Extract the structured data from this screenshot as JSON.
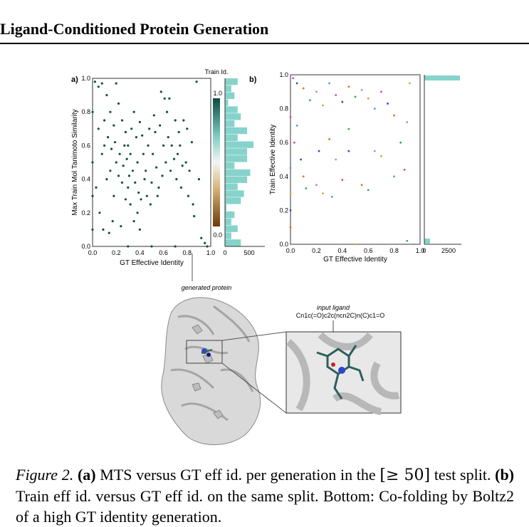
{
  "header": {
    "title": "Ligand-Conditioned Protein Generation"
  },
  "colors": {
    "teal_dark": "#0f4f45",
    "teal_light": "#7fcfc4",
    "hist": "#86d3cb",
    "brown": "#7a4a15",
    "magenta": "#cc44cc",
    "blue": "#3344cc"
  },
  "panel_a": {
    "label": "a)",
    "ylabel": "Max Train Mol Tanimoto Similarity",
    "xlabel": "GT Effective Identity",
    "xticks": [
      "0.0",
      "0.2",
      "0.4",
      "0.6",
      "0.8",
      "1.0"
    ],
    "yticks": [
      "0.0",
      "0.2",
      "0.4",
      "0.6",
      "0.8",
      "1.0"
    ],
    "colorbar_title": "Train Id.",
    "colorbar_ticks": [
      "1.0",
      "0.0"
    ],
    "hist_xticks": [
      "0",
      "500"
    ]
  },
  "panel_b": {
    "label": "b)",
    "ylabel": "Train Effective Identity",
    "xlabel": "GT Effective Identity",
    "xticks": [
      "0.0",
      "0.2",
      "0.4",
      "0.6",
      "0.8",
      "1.0"
    ],
    "yticks": [
      "0.0",
      "0.2",
      "0.4",
      "0.6",
      "0.8",
      "1.0"
    ],
    "hist_xticks": [
      "0",
      "2500"
    ]
  },
  "protein": {
    "generated_label": "generated protein",
    "ligand_label": "input ligand",
    "smiles": "Cn1c(=O)c2c(ncn2C)n(C)c1=O"
  },
  "chart_data": [
    {
      "type": "scatter",
      "title": "",
      "xlabel": "GT Effective Identity",
      "ylabel": "Max Train Mol Tanimoto Similarity",
      "xlim": [
        0,
        1
      ],
      "ylim": [
        0,
        1
      ],
      "colorbar": "Train Id.",
      "points": [
        [
          0.02,
          0.98
        ],
        [
          0.05,
          0.95
        ],
        [
          0.08,
          0.97
        ],
        [
          0.12,
          0.9
        ],
        [
          0.15,
          0.8
        ],
        [
          0.18,
          0.72
        ],
        [
          0.2,
          0.97
        ],
        [
          0.22,
          0.85
        ],
        [
          0.25,
          0.75
        ],
        [
          0.28,
          0.68
        ],
        [
          0.3,
          0.6
        ],
        [
          0.32,
          0.55
        ],
        [
          0.35,
          0.8
        ],
        [
          0.38,
          0.5
        ],
        [
          0.4,
          0.74
        ],
        [
          0.42,
          0.66
        ],
        [
          0.45,
          0.45
        ],
        [
          0.48,
          0.7
        ],
        [
          0.5,
          0.38
        ],
        [
          0.52,
          0.78
        ],
        [
          0.55,
          0.3
        ],
        [
          0.58,
          0.92
        ],
        [
          0.6,
          0.6
        ],
        [
          0.62,
          0.5
        ],
        [
          0.65,
          0.88
        ],
        [
          0.7,
          0.75
        ],
        [
          0.72,
          0.55
        ],
        [
          0.75,
          0.35
        ],
        [
          0.8,
          0.7
        ],
        [
          0.82,
          0.45
        ],
        [
          0.85,
          0.25
        ],
        [
          0.88,
          0.98
        ],
        [
          0.1,
          0.6
        ],
        [
          0.12,
          0.4
        ],
        [
          0.15,
          0.45
        ],
        [
          0.18,
          0.3
        ],
        [
          0.2,
          0.5
        ],
        [
          0.22,
          0.42
        ],
        [
          0.25,
          0.38
        ],
        [
          0.28,
          0.28
        ],
        [
          0.3,
          0.35
        ],
        [
          0.32,
          0.25
        ],
        [
          0.35,
          0.15
        ],
        [
          0.38,
          0.2
        ],
        [
          0.4,
          0.1
        ],
        [
          0.05,
          0.7
        ],
        [
          0.08,
          0.55
        ],
        [
          0.03,
          0.35
        ],
        [
          0.06,
          0.2
        ],
        [
          0.09,
          0.1
        ],
        [
          0.14,
          0.08
        ],
        [
          0.17,
          0.15
        ],
        [
          0.24,
          0.12
        ],
        [
          0.27,
          0.6
        ],
        [
          0.33,
          0.7
        ],
        [
          0.37,
          0.65
        ],
        [
          0.43,
          0.55
        ],
        [
          0.47,
          0.6
        ],
        [
          0.53,
          0.68
        ],
        [
          0.57,
          0.72
        ],
        [
          0.63,
          0.8
        ],
        [
          0.67,
          0.6
        ],
        [
          0.73,
          0.68
        ],
        [
          0.77,
          0.75
        ],
        [
          0.1,
          0.75
        ],
        [
          0.13,
          0.65
        ],
        [
          0.16,
          0.58
        ],
        [
          0.19,
          0.62
        ],
        [
          0.23,
          0.55
        ],
        [
          0.26,
          0.48
        ],
        [
          0.29,
          0.52
        ],
        [
          0.31,
          0.42
        ],
        [
          0.34,
          0.45
        ],
        [
          0.36,
          0.38
        ],
        [
          0.39,
          0.32
        ],
        [
          0.41,
          0.28
        ],
        [
          0.44,
          0.4
        ],
        [
          0.46,
          0.3
        ],
        [
          0.49,
          0.25
        ],
        [
          0.51,
          0.55
        ],
        [
          0.54,
          0.47
        ],
        [
          0.56,
          0.35
        ],
        [
          0.59,
          0.42
        ],
        [
          0.61,
          0.88
        ],
        [
          0.64,
          0.65
        ],
        [
          0.66,
          0.45
        ],
        [
          0.69,
          0.52
        ],
        [
          0.71,
          0.4
        ],
        [
          0.74,
          0.6
        ],
        [
          0.76,
          0.48
        ],
        [
          0.79,
          0.5
        ],
        [
          0.81,
          0.3
        ],
        [
          0.84,
          0.62
        ],
        [
          0.86,
          0.18
        ],
        [
          0.9,
          0.4
        ],
        [
          0.92,
          0.05
        ],
        [
          0.0,
          0.3
        ],
        [
          0.0,
          0.5
        ],
        [
          0.0,
          0.8
        ],
        [
          0.0,
          0.1
        ],
        [
          0.95,
          0.02
        ],
        [
          0.97,
          0.0
        ],
        [
          0.5,
          0.0
        ],
        [
          0.3,
          0.0
        ],
        [
          0.7,
          0.0
        ]
      ]
    },
    {
      "type": "scatter",
      "title": "",
      "xlabel": "GT Effective Identity",
      "ylabel": "Train Effective Identity",
      "xlim": [
        0,
        1
      ],
      "ylim": [
        0,
        1
      ],
      "points": [
        [
          0.02,
          0.98
        ],
        [
          0.05,
          0.95
        ],
        [
          0.1,
          0.92
        ],
        [
          0.15,
          0.85
        ],
        [
          0.2,
          0.9
        ],
        [
          0.25,
          0.82
        ],
        [
          0.3,
          0.95
        ],
        [
          0.35,
          0.88
        ],
        [
          0.4,
          0.84
        ],
        [
          0.45,
          0.93
        ],
        [
          0.5,
          0.87
        ],
        [
          0.55,
          0.91
        ],
        [
          0.6,
          0.86
        ],
        [
          0.65,
          0.8
        ],
        [
          0.7,
          0.9
        ],
        [
          0.75,
          0.83
        ],
        [
          0.8,
          0.76
        ],
        [
          0.85,
          0.6
        ],
        [
          0.9,
          0.72
        ],
        [
          0.92,
          0.95
        ],
        [
          0.05,
          0.7
        ],
        [
          0.03,
          0.6
        ],
        [
          0.08,
          0.5
        ],
        [
          0.1,
          0.4
        ],
        [
          0.12,
          0.33
        ],
        [
          0.2,
          0.35
        ],
        [
          0.25,
          0.3
        ],
        [
          0.32,
          0.28
        ],
        [
          0.4,
          0.38
        ],
        [
          0.45,
          0.55
        ],
        [
          0.55,
          0.35
        ],
        [
          0.6,
          0.32
        ],
        [
          0.65,
          0.55
        ],
        [
          0.7,
          0.52
        ],
        [
          0.8,
          0.4
        ],
        [
          0.88,
          0.44
        ],
        [
          0.22,
          0.55
        ],
        [
          0.3,
          0.62
        ],
        [
          0.45,
          0.68
        ],
        [
          0.35,
          0.5
        ],
        [
          0.0,
          0.3
        ],
        [
          0.0,
          0.45
        ],
        [
          0.0,
          0.75
        ],
        [
          0.0,
          0.2
        ],
        [
          0.0,
          0.1
        ],
        [
          0.9,
          0.02
        ],
        [
          0.95,
          0.0
        ],
        [
          0.5,
          0.0
        ]
      ]
    }
  ]
}
